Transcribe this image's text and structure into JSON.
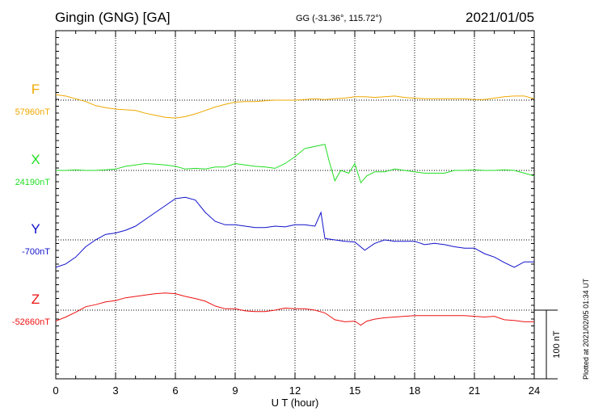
{
  "header": {
    "station": "Gingin (GNG)  [GA]",
    "coords": "GG (-31.36°, 115.72°)",
    "date": "2021/01/05"
  },
  "footer": {
    "plotted": "Plotted at 2021/02/05 01:34 UT"
  },
  "scale_bar": {
    "label": "100 nT",
    "value_nT": 100
  },
  "colors": {
    "F": "#f0a800",
    "X": "#22dd22",
    "Y": "#1010cc",
    "Z": "#ee1111"
  },
  "chart_data": {
    "type": "line",
    "xlabel": "U T (hour)",
    "xlim": [
      0,
      24
    ],
    "xticks": [
      "0",
      "3",
      "6",
      "9",
      "12",
      "15",
      "18",
      "21",
      "24"
    ],
    "grid": true,
    "series": [
      {
        "name": "F",
        "baseline_label": "57960nT",
        "baseline_nT": 57960,
        "x": [
          0,
          0.5,
          1,
          1.5,
          2,
          2.5,
          3,
          3.5,
          4,
          4.5,
          5,
          5.5,
          6,
          6.5,
          7,
          7.5,
          8,
          8.5,
          9,
          9.5,
          10,
          10.5,
          11,
          11.5,
          12,
          12.5,
          13,
          13.5,
          14,
          14.5,
          15,
          15.5,
          16,
          16.5,
          17,
          17.5,
          18,
          18.5,
          19,
          19.5,
          20,
          20.5,
          21,
          21.5,
          22,
          22.5,
          23,
          23.5,
          24
        ],
        "y": [
          57968,
          57966,
          57962,
          57958,
          57952,
          57949,
          57947,
          57946,
          57945,
          57941,
          57938,
          57935,
          57934,
          57936,
          57940,
          57945,
          57950,
          57954,
          57957,
          57958,
          57958,
          57959,
          57960,
          57960,
          57960,
          57961,
          57962,
          57961,
          57962,
          57963,
          57965,
          57965,
          57964,
          57965,
          57966,
          57964,
          57963,
          57962,
          57962,
          57962,
          57962,
          57962,
          57961,
          57961,
          57963,
          57965,
          57966,
          57966,
          57962
        ]
      },
      {
        "name": "X",
        "baseline_label": "24190nT",
        "baseline_nT": 24190,
        "x": [
          0,
          0.5,
          1,
          1.5,
          2,
          2.5,
          3,
          3.5,
          4,
          4.5,
          5,
          5.5,
          6,
          6.5,
          7,
          7.5,
          8,
          8.5,
          9,
          9.5,
          10,
          10.5,
          11,
          11.5,
          12,
          12.5,
          13,
          13.5,
          13.7,
          14,
          14.3,
          14.7,
          15,
          15.3,
          15.6,
          16,
          16.5,
          17,
          17.5,
          18,
          18.5,
          19,
          19.5,
          20,
          20.5,
          21,
          21.5,
          22,
          22.5,
          23,
          23.5,
          24
        ],
        "y": [
          24190,
          24190,
          24191,
          24190,
          24190,
          24191,
          24192,
          24196,
          24198,
          24200,
          24199,
          24198,
          24196,
          24192,
          24193,
          24192,
          24195,
          24195,
          24200,
          24198,
          24196,
          24195,
          24193,
          24200,
          24210,
          24222,
          24225,
          24228,
          24205,
          24175,
          24190,
          24186,
          24200,
          24172,
          24182,
          24188,
          24188,
          24192,
          24190,
          24188,
          24186,
          24186,
          24186,
          24190,
          24190,
          24191,
          24190,
          24190,
          24191,
          24190,
          24186,
          24182
        ]
      },
      {
        "name": "Y",
        "baseline_label": "-700nT",
        "baseline_nT": -700,
        "x": [
          0,
          0.5,
          1,
          1.5,
          2,
          2.5,
          3,
          3.5,
          4,
          4.5,
          5,
          5.5,
          6,
          6.5,
          7,
          7.5,
          8,
          8.5,
          9,
          9.5,
          10,
          10.5,
          11,
          11.5,
          12,
          12.5,
          13,
          13.3,
          13.5,
          14,
          14.5,
          15,
          15.5,
          16,
          16.5,
          17,
          17.5,
          18,
          18.5,
          19,
          19.5,
          20,
          20.5,
          21,
          21.5,
          22,
          22.5,
          23,
          23.5,
          24
        ],
        "y": [
          -740,
          -735,
          -725,
          -710,
          -700,
          -692,
          -690,
          -686,
          -680,
          -670,
          -660,
          -650,
          -640,
          -638,
          -642,
          -660,
          -673,
          -678,
          -678,
          -680,
          -682,
          -682,
          -680,
          -681,
          -678,
          -678,
          -680,
          -660,
          -698,
          -700,
          -702,
          -703,
          -715,
          -705,
          -700,
          -702,
          -702,
          -702,
          -707,
          -705,
          -707,
          -710,
          -712,
          -712,
          -720,
          -725,
          -733,
          -740,
          -732,
          -732
        ]
      },
      {
        "name": "Z",
        "baseline_label": "-52660nT",
        "baseline_nT": -52660,
        "x": [
          0,
          0.5,
          1,
          1.5,
          2,
          2.5,
          3,
          3.5,
          4,
          4.5,
          5,
          5.5,
          6,
          6.5,
          7,
          7.5,
          8,
          8.5,
          9,
          9.5,
          10,
          10.5,
          11,
          11.5,
          12,
          12.5,
          13,
          13.5,
          14,
          14.5,
          15,
          15.3,
          15.6,
          16,
          16.5,
          17,
          17.5,
          18,
          18.5,
          19,
          19.5,
          20,
          20.5,
          21,
          21.5,
          22,
          22.5,
          23,
          23.5,
          24
        ],
        "y": [
          -52676,
          -52670,
          -52663,
          -52655,
          -52652,
          -52648,
          -52646,
          -52642,
          -52640,
          -52638,
          -52636,
          -52635,
          -52636,
          -52640,
          -52643,
          -52647,
          -52654,
          -52658,
          -52658,
          -52661,
          -52662,
          -52662,
          -52660,
          -52657,
          -52658,
          -52658,
          -52660,
          -52664,
          -52674,
          -52677,
          -52676,
          -52682,
          -52676,
          -52673,
          -52671,
          -52670,
          -52669,
          -52668,
          -52668,
          -52668,
          -52668,
          -52668,
          -52668,
          -52669,
          -52670,
          -52669,
          -52674,
          -52675,
          -52677,
          -52677
        ]
      }
    ]
  }
}
